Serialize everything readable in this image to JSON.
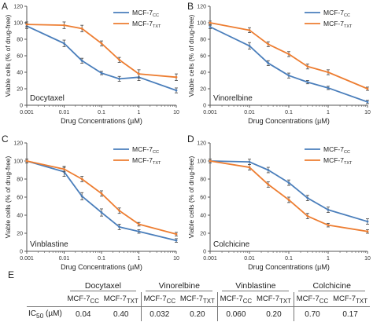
{
  "colors": {
    "cc": "#4a7ebb",
    "txt": "#ed7d31",
    "axis": "#555555",
    "grid": "#d9d9d9"
  },
  "panel_letters": [
    "A",
    "B",
    "C",
    "D",
    "E"
  ],
  "chart_data": [
    {
      "type": "line",
      "panel": "A",
      "annotation": "Docytaxel",
      "xlabel": "Drug Concentrations (µM)",
      "ylabel": "Viable cells (% of drug-free)",
      "xscale": "log",
      "xlim": [
        0.001,
        10
      ],
      "xticks": [
        "0.001",
        "0.01",
        "0.1",
        "1",
        "10"
      ],
      "ylim": [
        0,
        120
      ],
      "yticks": [
        "0",
        "20",
        "40",
        "60",
        "80",
        "100",
        "120"
      ],
      "grid": false,
      "legend": "top-right",
      "x": [
        0.001,
        0.01,
        0.03,
        0.1,
        0.3,
        1,
        10
      ],
      "series": [
        {
          "name": "MCF-7",
          "sub": "CC",
          "color": "#4a7ebb",
          "marker": "line",
          "values": [
            96,
            75,
            54,
            39,
            32,
            34,
            18
          ],
          "err": [
            3,
            4,
            3,
            2,
            3,
            4,
            3
          ]
        },
        {
          "name": "MCF-7",
          "sub": "TXT",
          "color": "#ed7d31",
          "marker": "line",
          "values": [
            98,
            97,
            93,
            75,
            55,
            38,
            34
          ],
          "err": [
            3,
            4,
            4,
            3,
            3,
            5,
            4
          ]
        }
      ]
    },
    {
      "type": "line",
      "panel": "B",
      "annotation": "Vinorelbine",
      "xlabel": "Drug Concentrations (µM)",
      "ylabel": "Viable cells (% of drug-free)",
      "xscale": "log",
      "xlim": [
        0.001,
        10
      ],
      "xticks": [
        "0.001",
        "0.01",
        "0.1",
        "1",
        "10"
      ],
      "ylim": [
        0,
        120
      ],
      "yticks": [
        "0",
        "20",
        "40",
        "60",
        "80",
        "100",
        "120"
      ],
      "grid": false,
      "legend": "top-right",
      "x": [
        0.001,
        0.01,
        0.03,
        0.1,
        0.3,
        1,
        10
      ],
      "series": [
        {
          "name": "MCF-7",
          "sub": "CC",
          "color": "#4a7ebb",
          "marker": "line",
          "values": [
            95,
            72,
            51,
            36,
            28,
            21,
            4
          ],
          "err": [
            2,
            4,
            3,
            3,
            2,
            2,
            2
          ]
        },
        {
          "name": "MCF-7",
          "sub": "TXT",
          "color": "#ed7d31",
          "marker": "line",
          "values": [
            100,
            91,
            74,
            62,
            47,
            40,
            20
          ],
          "err": [
            2,
            3,
            3,
            3,
            3,
            3,
            2
          ]
        }
      ]
    },
    {
      "type": "line",
      "panel": "C",
      "annotation": "Vinblastine",
      "xlabel": "Drug Concentrations (µM)",
      "ylabel": "Viable cells (% of drug-free)",
      "xscale": "log",
      "xlim": [
        0.001,
        10
      ],
      "xticks": [
        "0.001",
        "0.01",
        "0.1",
        "1",
        "10"
      ],
      "ylim": [
        0,
        120
      ],
      "yticks": [
        "0",
        "20",
        "40",
        "60",
        "80",
        "100",
        "120"
      ],
      "grid": false,
      "legend": "top-right",
      "x": [
        0.001,
        0.01,
        0.03,
        0.1,
        0.3,
        1,
        10
      ],
      "series": [
        {
          "name": "MCF-7",
          "sub": "CC",
          "color": "#4a7ebb",
          "marker": "line",
          "values": [
            100,
            88,
            61,
            43,
            27,
            22,
            12
          ],
          "err": [
            2,
            5,
            4,
            4,
            3,
            2,
            2
          ]
        },
        {
          "name": "MCF-7",
          "sub": "TXT",
          "color": "#ed7d31",
          "marker": "line",
          "values": [
            100,
            91,
            80,
            64,
            45,
            30,
            19
          ],
          "err": [
            2,
            3,
            3,
            3,
            3,
            2,
            2
          ]
        }
      ]
    },
    {
      "type": "line",
      "panel": "D",
      "annotation": "Colchicine",
      "xlabel": "Drug Concentrations (µM)",
      "ylabel": "Viable cells (% of drug-free)",
      "xscale": "log",
      "xlim": [
        0.001,
        10
      ],
      "xticks": [
        "0.001",
        "0.01",
        "0.1",
        "1",
        "10"
      ],
      "ylim": [
        0,
        120
      ],
      "yticks": [
        "0",
        "20",
        "40",
        "60",
        "80",
        "100",
        "120"
      ],
      "grid": false,
      "legend": "top-right",
      "x": [
        0.001,
        0.01,
        0.03,
        0.1,
        0.3,
        1,
        10
      ],
      "series": [
        {
          "name": "MCF-7",
          "sub": "CC",
          "color": "#4a7ebb",
          "marker": "line",
          "values": [
            100,
            99,
            90,
            76,
            59,
            46,
            33
          ],
          "err": [
            2,
            3,
            3,
            3,
            3,
            3,
            3
          ]
        },
        {
          "name": "MCF-7",
          "sub": "TXT",
          "color": "#ed7d31",
          "marker": "line",
          "values": [
            100,
            93,
            74,
            57,
            39,
            29,
            22
          ],
          "err": [
            2,
            3,
            3,
            3,
            3,
            2,
            2
          ]
        }
      ]
    },
    {
      "type": "table",
      "panel": "E",
      "row_label": "IC",
      "row_label_sub": "50",
      "row_label_unit": " (µM)",
      "drugs": [
        "Docytaxel",
        "Vinorelbine",
        "Vinblastine",
        "Colchicine"
      ],
      "cell_line": "MCF-7",
      "cell_subs": [
        "CC",
        "TXT"
      ],
      "values": [
        [
          "0.04",
          "0.40"
        ],
        [
          "0.032",
          "0.20"
        ],
        [
          "0.060",
          "0.20"
        ],
        [
          "0.70",
          "0.17"
        ]
      ]
    }
  ]
}
